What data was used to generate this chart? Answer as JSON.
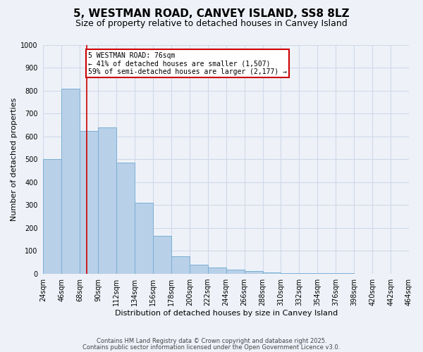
{
  "title": "5, WESTMAN ROAD, CANVEY ISLAND, SS8 8LZ",
  "subtitle": "Size of property relative to detached houses in Canvey Island",
  "xlabel": "Distribution of detached houses by size in Canvey Island",
  "ylabel": "Number of detached properties",
  "bin_edges": [
    24,
    46,
    68,
    90,
    112,
    134,
    156,
    178,
    200,
    222,
    244,
    266,
    288,
    310,
    332,
    354,
    376,
    398,
    420,
    442,
    464
  ],
  "bar_heights": [
    500,
    810,
    625,
    640,
    485,
    310,
    165,
    75,
    40,
    28,
    18,
    10,
    5,
    3,
    2,
    1,
    1,
    0,
    0,
    0
  ],
  "bar_color": "#b8d0e8",
  "bar_edge_color": "#7aafd4",
  "grid_color": "#d0d8e8",
  "background_color": "#eef2f8",
  "red_line_x": 76,
  "annotation_text": "5 WESTMAN ROAD: 76sqm\n← 41% of detached houses are smaller (1,507)\n59% of semi-detached houses are larger (2,177) →",
  "annotation_box_color": "#ffffff",
  "annotation_border_color": "#cc0000",
  "ylim": [
    0,
    1000
  ],
  "yticks": [
    0,
    100,
    200,
    300,
    400,
    500,
    600,
    700,
    800,
    900,
    1000
  ],
  "footer_line1": "Contains HM Land Registry data © Crown copyright and database right 2025.",
  "footer_line2": "Contains public sector information licensed under the Open Government Licence v3.0.",
  "title_fontsize": 11,
  "subtitle_fontsize": 9,
  "ylabel_fontsize": 8,
  "xlabel_fontsize": 8,
  "tick_fontsize": 7,
  "annotation_fontsize": 7,
  "footer_fontsize": 6
}
